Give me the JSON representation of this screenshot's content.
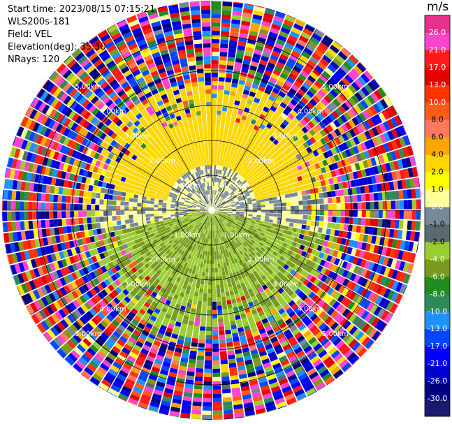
{
  "info": {
    "start_time": "Start time: 2023/08/15 07:15:21",
    "instrument": "WLS200s-181",
    "field": "Field: VEL",
    "elevation": "Elevation(deg): 35.30",
    "nrays": "NRays: 120"
  },
  "colorbar": {
    "unit": "m/s",
    "ticks": [
      "26.0",
      "21.0",
      "17.0",
      "13.0",
      "10.0",
      "8.0",
      "6.0",
      "4.0",
      "2.0",
      "1.0",
      "0.0",
      "-1.0",
      "-2.0",
      "-4.0",
      "-6.0",
      "-8.0",
      "-10.0",
      "-13.0",
      "-17.0",
      "-21.0",
      "-26.0",
      "-30.0"
    ],
    "colors": [
      "#e8308f",
      "#ff44cc",
      "#ff1a1a",
      "#e60000",
      "#ff3300",
      "#ff5c1a",
      "#ff7a5c",
      "#ffa500",
      "#ffd700",
      "#ffff00",
      "#ffff99",
      "#778899",
      "#5a6a70",
      "#9acd32",
      "#7a9a1e",
      "#228b22",
      "#2e8b57",
      "#1e90ff",
      "#0047ff",
      "#0000ff",
      "#0000cd",
      "#000080",
      "#191970"
    ],
    "tick_text_colors": [
      "#ffffff",
      "#ffffff",
      "#ffffff",
      "#ffffff",
      "#ffffff",
      "#000000",
      "#000000",
      "#000000",
      "#000000",
      "#000000",
      "#ffffff",
      "#000000",
      "#000000",
      "#ffffff",
      "#ffffff",
      "#ffffff",
      "#ffffff",
      "#ffffff",
      "#ffffff",
      "#ffffff",
      "#ffffff",
      "#ffffff"
    ]
  },
  "chart_data": {
    "type": "heatmap",
    "title": "",
    "field": "VEL",
    "units": "m/s",
    "projection": "polar PPI",
    "nrays": 120,
    "range_ring_labels": [
      "1.00km",
      "2.00km",
      "3.00km",
      "4.00km",
      "5.00km"
    ],
    "range_rings_km": [
      1,
      2,
      3,
      4,
      5
    ],
    "max_range_km": 6,
    "spoke_angles_deg": [
      0,
      30,
      60,
      90,
      120,
      150,
      180,
      210,
      240,
      270,
      300,
      330
    ],
    "velocity_min": -30,
    "velocity_max": 26,
    "pattern": {
      "north_sector_mean": 3,
      "south_sector_mean": -4,
      "near_center_north": 0,
      "clean_range_km": 3.3,
      "noise_begins_km": 3.6
    }
  }
}
